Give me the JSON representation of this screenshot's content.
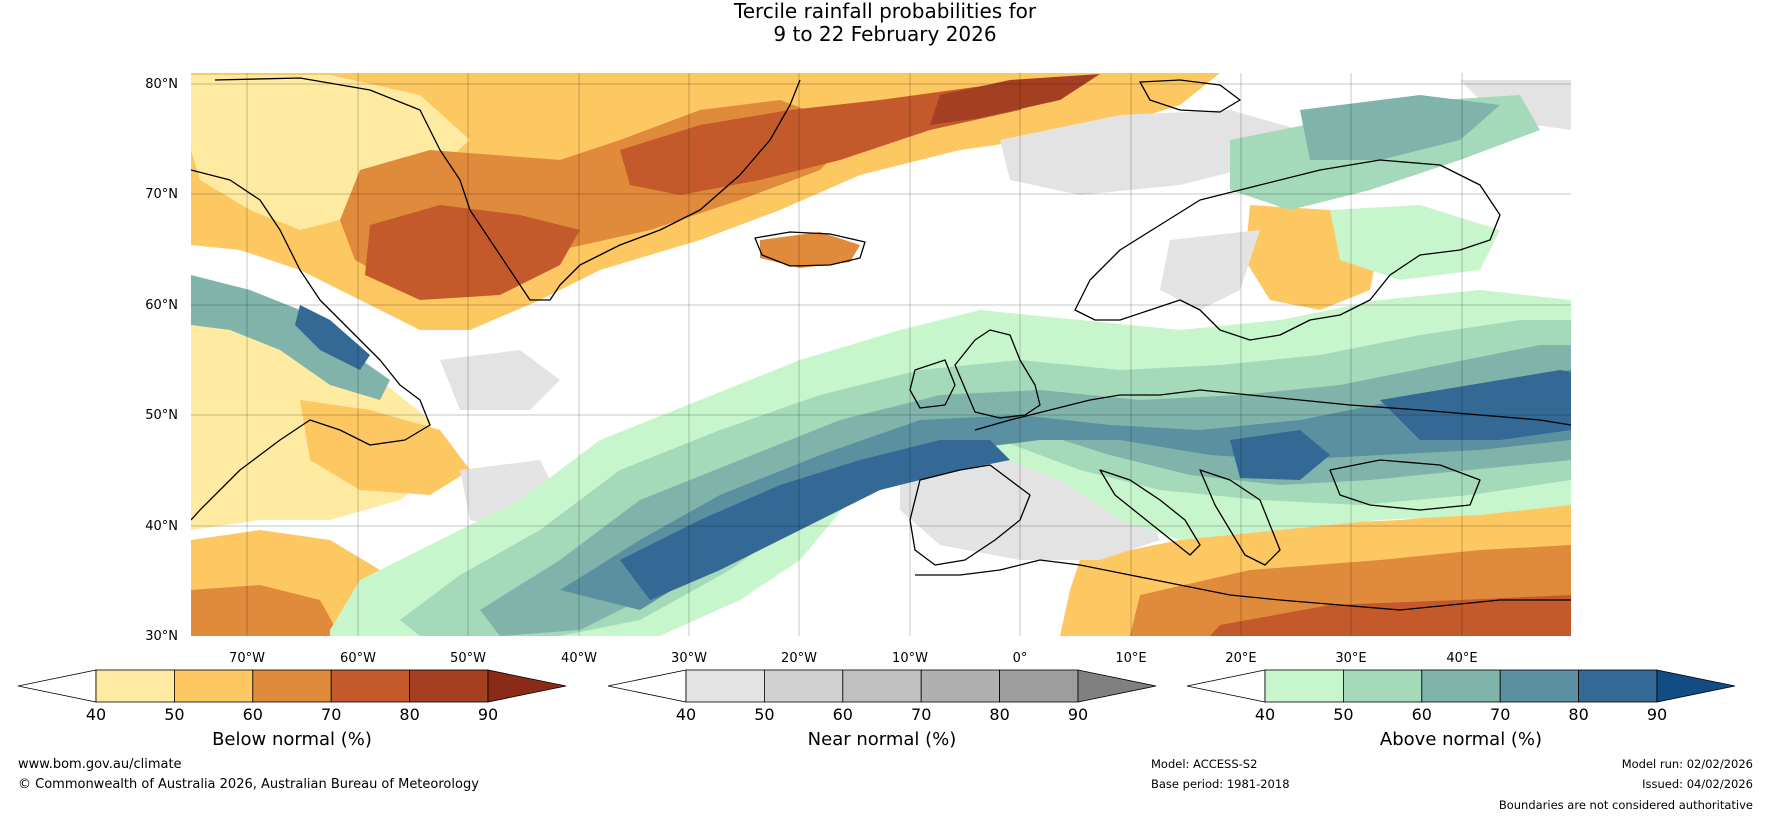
{
  "title": {
    "line1": "Tercile rainfall probabilities for",
    "line2": "9 to 22 February 2026"
  },
  "map": {
    "lat_labels": [
      "80°N",
      "70°N",
      "60°N",
      "50°N",
      "40°N",
      "30°N"
    ],
    "lon_labels": [
      "70°W",
      "60°W",
      "50°W",
      "40°W",
      "30°W",
      "20°W",
      "10°W",
      "0°",
      "10°E",
      "20°E",
      "30°E",
      "40°E"
    ],
    "extent": {
      "lon_min": -75,
      "lon_max": 50,
      "lat_min": 30,
      "lat_max": 81
    },
    "land_fill": "#e4e4e4",
    "ocean_fill": "#ffffff"
  },
  "legends": [
    {
      "title": "Below normal (%)",
      "ticks": [
        "40",
        "50",
        "60",
        "70",
        "80",
        "90"
      ],
      "colors": [
        "#ffffff",
        "#feeaa0",
        "#fdc762",
        "#e08a3c",
        "#c45a2b",
        "#a43f22",
        "#8b2a16"
      ]
    },
    {
      "title": "Near normal (%)",
      "ticks": [
        "40",
        "50",
        "60",
        "70",
        "80",
        "90"
      ],
      "colors": [
        "#ffffff",
        "#e3e3e3",
        "#d1d1d1",
        "#c0c0c0",
        "#b0b0b0",
        "#9d9d9d",
        "#808080"
      ]
    },
    {
      "title": "Above normal (%)",
      "ticks": [
        "40",
        "50",
        "60",
        "70",
        "80",
        "90"
      ],
      "colors": [
        "#ffffff",
        "#c8f6cc",
        "#a4d9b9",
        "#80b3aa",
        "#5a90a0",
        "#336994",
        "#124c85"
      ]
    }
  ],
  "footer": {
    "website": "www.bom.gov.au/climate",
    "copyright": "© Commonwealth of Australia 2026, Australian Bureau of Meteorology",
    "model": "Model: ACCESS-S2",
    "base_period": "Base period: 1981-2018",
    "model_run": "Model run: 02/02/2026",
    "issued": "Issued: 04/02/2026",
    "disclaimer": "Boundaries are not considered authoritative"
  }
}
